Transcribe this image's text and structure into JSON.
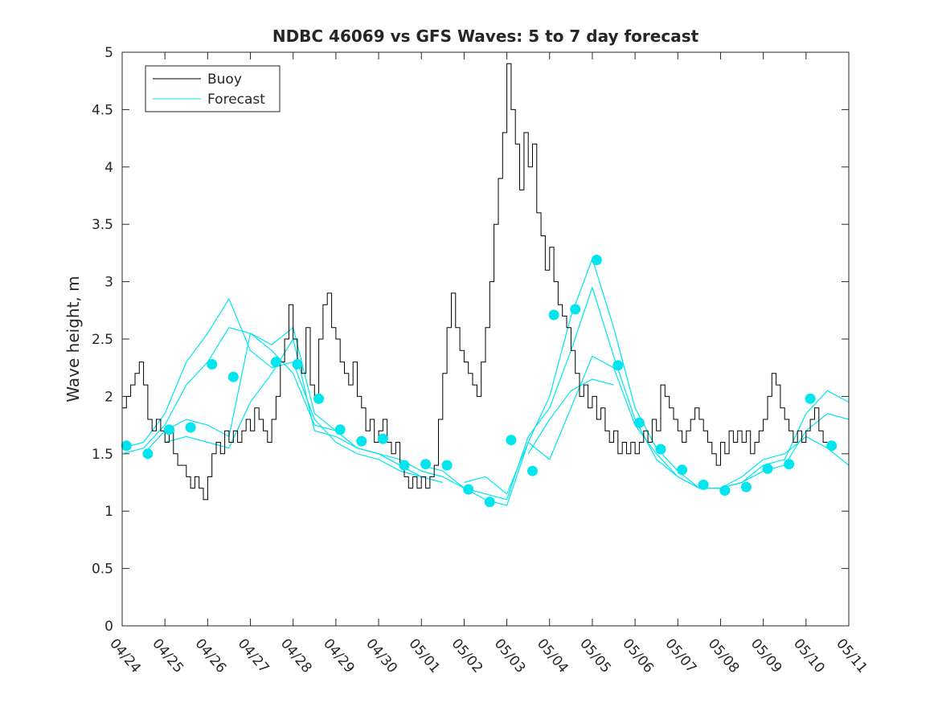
{
  "chart_data": {
    "type": "line",
    "title": "NDBC 46069 vs GFS Waves: 5 to 7 day forecast",
    "xlabel": "",
    "ylabel": "Wave height, m",
    "x_unit": "days",
    "xlim": [
      0,
      17
    ],
    "ylim": [
      0,
      5
    ],
    "x_ticks": [
      0,
      1,
      2,
      3,
      4,
      5,
      6,
      7,
      8,
      9,
      10,
      11,
      12,
      13,
      14,
      15,
      16,
      17
    ],
    "x_tick_labels": [
      "04/24",
      "04/25",
      "04/26",
      "04/27",
      "04/28",
      "04/29",
      "04/30",
      "05/01",
      "05/02",
      "05/03",
      "05/04",
      "05/05",
      "05/06",
      "05/07",
      "05/08",
      "05/09",
      "05/10",
      "05/11"
    ],
    "y_ticks": [
      0,
      0.5,
      1,
      1.5,
      2,
      2.5,
      3,
      3.5,
      4,
      4.5,
      5
    ],
    "y_tick_labels": [
      "0",
      "0.5",
      "1",
      "1.5",
      "2",
      "2.5",
      "3",
      "3.5",
      "4",
      "4.5",
      "5"
    ],
    "grid": false,
    "legend_position": "top-left",
    "legend": [
      {
        "label": "Buoy",
        "color": "#000000"
      },
      {
        "label": "Forecast",
        "color": "#00e5ee"
      }
    ],
    "buoy": {
      "name": "Buoy",
      "color": "#000000",
      "x": [
        0.0,
        0.1,
        0.2,
        0.3,
        0.4,
        0.5,
        0.6,
        0.7,
        0.8,
        0.9,
        1.0,
        1.1,
        1.2,
        1.3,
        1.4,
        1.5,
        1.6,
        1.7,
        1.8,
        1.9,
        2.0,
        2.1,
        2.2,
        2.3,
        2.4,
        2.5,
        2.6,
        2.7,
        2.8,
        2.9,
        3.0,
        3.1,
        3.2,
        3.3,
        3.4,
        3.5,
        3.6,
        3.7,
        3.8,
        3.9,
        4.0,
        4.1,
        4.2,
        4.3,
        4.4,
        4.5,
        4.6,
        4.7,
        4.8,
        4.9,
        5.0,
        5.1,
        5.2,
        5.3,
        5.4,
        5.5,
        5.6,
        5.7,
        5.8,
        5.9,
        6.0,
        6.1,
        6.2,
        6.3,
        6.4,
        6.5,
        6.6,
        6.7,
        6.8,
        6.9,
        7.0,
        7.1,
        7.2,
        7.3,
        7.4,
        7.5,
        7.6,
        7.7,
        7.8,
        7.9,
        8.0,
        8.1,
        8.2,
        8.3,
        8.4,
        8.5,
        8.6,
        8.7,
        8.8,
        8.9,
        9.0,
        9.1,
        9.2,
        9.3,
        9.4,
        9.5,
        9.6,
        9.7,
        9.8,
        9.9,
        10.0,
        10.1,
        10.2,
        10.3,
        10.4,
        10.5,
        10.6,
        10.7,
        10.8,
        10.9,
        11.0,
        11.1,
        11.2,
        11.3,
        11.4,
        11.5,
        11.6,
        11.7,
        11.8,
        11.9,
        12.0,
        12.1,
        12.2,
        12.3,
        12.4,
        12.5,
        12.6,
        12.7,
        12.8,
        12.9,
        13.0,
        13.1,
        13.2,
        13.3,
        13.4,
        13.5,
        13.6,
        13.7,
        13.8,
        13.9,
        14.0,
        14.1,
        14.2,
        14.3,
        14.4,
        14.5,
        14.6,
        14.7,
        14.8,
        14.9,
        15.0,
        15.1,
        15.2,
        15.3,
        15.4,
        15.5,
        15.6,
        15.7,
        15.8,
        15.9,
        16.0,
        16.1,
        16.2,
        16.3,
        16.4,
        16.5
      ],
      "y": [
        1.9,
        2.0,
        2.1,
        2.2,
        2.3,
        2.1,
        1.8,
        1.7,
        1.8,
        1.7,
        1.6,
        1.7,
        1.5,
        1.4,
        1.4,
        1.3,
        1.2,
        1.3,
        1.2,
        1.1,
        1.3,
        1.5,
        1.6,
        1.5,
        1.7,
        1.6,
        1.7,
        1.6,
        1.7,
        1.8,
        1.7,
        1.9,
        1.8,
        1.7,
        1.6,
        1.8,
        2.0,
        2.3,
        2.5,
        2.8,
        2.5,
        2.3,
        2.2,
        2.6,
        2.1,
        2.0,
        2.5,
        2.8,
        2.9,
        2.6,
        2.5,
        2.3,
        2.2,
        2.1,
        2.3,
        2.0,
        1.9,
        1.7,
        1.8,
        1.6,
        1.7,
        1.8,
        1.6,
        1.5,
        1.6,
        1.4,
        1.3,
        1.2,
        1.3,
        1.2,
        1.3,
        1.2,
        1.3,
        1.4,
        1.8,
        2.2,
        2.6,
        2.9,
        2.6,
        2.4,
        2.3,
        2.2,
        2.1,
        2.0,
        2.3,
        2.6,
        3.0,
        3.5,
        3.9,
        4.3,
        4.9,
        4.5,
        4.2,
        3.8,
        4.3,
        4.0,
        4.2,
        3.6,
        3.4,
        3.1,
        3.3,
        3.0,
        2.8,
        2.7,
        2.6,
        2.4,
        2.2,
        2.0,
        2.1,
        1.9,
        2.0,
        1.8,
        1.9,
        1.7,
        1.6,
        1.7,
        1.5,
        1.6,
        1.5,
        1.6,
        1.5,
        1.6,
        1.7,
        1.6,
        1.8,
        1.7,
        2.1,
        2.0,
        1.9,
        1.8,
        1.7,
        1.6,
        1.7,
        1.8,
        1.9,
        1.8,
        1.7,
        1.6,
        1.5,
        1.4,
        1.6,
        1.5,
        1.7,
        1.6,
        1.7,
        1.6,
        1.7,
        1.5,
        1.6,
        1.7,
        1.8,
        2.0,
        2.2,
        2.1,
        1.9,
        1.8,
        1.7,
        1.6,
        1.7,
        1.6,
        1.7,
        1.8,
        1.9,
        1.7,
        1.6,
        1.6
      ]
    },
    "forecast_runs": [
      {
        "color": "#00e5ee",
        "x": [
          0.0,
          0.5,
          1.0,
          1.5,
          2.0,
          2.5,
          3.0,
          3.5,
          4.0,
          4.5,
          5.0,
          5.5,
          6.0,
          6.5,
          7.0
        ],
        "y": [
          1.55,
          1.6,
          1.85,
          2.3,
          2.55,
          2.85,
          2.4,
          2.25,
          2.3,
          1.8,
          1.6,
          1.5,
          1.45,
          1.35,
          1.3
        ]
      },
      {
        "color": "#00e5ee",
        "x": [
          0.0,
          0.5,
          1.0,
          1.5,
          2.0,
          2.5,
          3.0,
          3.5,
          4.0,
          4.5,
          5.0,
          5.5,
          6.0,
          6.5,
          7.0
        ],
        "y": [
          1.5,
          1.55,
          1.75,
          2.1,
          2.3,
          2.6,
          2.55,
          2.4,
          2.2,
          1.75,
          1.7,
          1.55,
          1.5,
          1.4,
          1.3
        ]
      },
      {
        "color": "#00e5ee",
        "x": [
          0.5,
          1.0,
          1.5,
          2.0,
          2.5,
          3.0,
          3.5,
          4.0,
          4.5,
          5.0,
          5.5,
          6.0,
          6.5,
          7.0,
          7.5
        ],
        "y": [
          1.5,
          1.7,
          1.8,
          1.75,
          1.65,
          2.55,
          2.45,
          2.6,
          1.85,
          1.7,
          1.55,
          1.5,
          1.45,
          1.35,
          1.3
        ]
      },
      {
        "color": "#00e5ee",
        "x": [
          1.0,
          1.5,
          2.0,
          2.5,
          3.0,
          3.5,
          4.0,
          4.5,
          5.0,
          5.5,
          6.0,
          6.5,
          7.0,
          7.5
        ],
        "y": [
          1.6,
          1.65,
          1.6,
          1.55,
          1.95,
          2.2,
          2.5,
          1.7,
          1.65,
          1.55,
          1.5,
          1.4,
          1.3,
          1.25
        ]
      },
      {
        "color": "#00e5ee",
        "x": [
          7.0,
          7.5,
          8.0,
          8.5,
          9.0,
          9.5,
          10.0,
          10.5,
          11.0,
          11.5,
          12.0,
          12.5,
          13.0,
          13.5,
          14.0,
          14.5,
          15.0,
          15.5,
          16.0,
          16.5,
          17.0
        ],
        "y": [
          1.4,
          1.35,
          1.2,
          1.1,
          1.05,
          1.6,
          2.0,
          2.7,
          3.2,
          2.6,
          1.9,
          1.55,
          1.35,
          1.2,
          1.2,
          1.25,
          1.4,
          1.45,
          1.85,
          2.05,
          1.95
        ]
      },
      {
        "color": "#00e5ee",
        "x": [
          7.0,
          7.5,
          8.0,
          8.5,
          9.0,
          9.5,
          10.0,
          10.5,
          11.0,
          11.5,
          12.0,
          12.5,
          13.0,
          13.5,
          14.0,
          14.5,
          15.0,
          15.5,
          16.0,
          16.5,
          17.0
        ],
        "y": [
          1.35,
          1.3,
          1.2,
          1.15,
          1.1,
          1.65,
          1.9,
          2.4,
          2.95,
          2.35,
          1.8,
          1.45,
          1.3,
          1.2,
          1.2,
          1.25,
          1.35,
          1.4,
          1.7,
          1.85,
          1.8
        ]
      },
      {
        "color": "#00e5ee",
        "x": [
          8.0,
          8.5,
          9.0,
          9.5,
          10.0,
          10.5,
          11.0,
          11.5,
          12.0,
          12.5,
          13.0,
          13.5,
          14.0,
          14.5,
          15.0,
          15.5,
          16.0,
          16.5,
          17.0
        ],
        "y": [
          1.25,
          1.3,
          1.15,
          1.6,
          1.45,
          1.9,
          2.35,
          2.25,
          1.75,
          1.5,
          1.3,
          1.2,
          1.2,
          1.3,
          1.45,
          1.5,
          1.65,
          1.55,
          1.4
        ]
      },
      {
        "color": "#00e5ee",
        "x": [
          9.5,
          10.0,
          10.5,
          11.0,
          11.5
        ],
        "y": [
          1.5,
          1.8,
          2.05,
          2.15,
          2.1
        ]
      }
    ],
    "forecast_markers": {
      "color": "#00e5ee",
      "x": [
        0.1,
        0.6,
        1.1,
        1.6,
        2.1,
        2.6,
        3.6,
        4.1,
        4.6,
        5.1,
        5.6,
        6.1,
        6.6,
        7.1,
        7.6,
        8.1,
        8.6,
        9.1,
        9.6,
        10.1,
        10.6,
        11.1,
        11.6,
        12.1,
        12.6,
        13.1,
        13.6,
        14.1,
        14.6,
        15.1,
        15.6,
        16.1,
        16.6
      ],
      "y": [
        1.57,
        1.5,
        1.71,
        1.73,
        2.28,
        2.17,
        2.3,
        2.28,
        1.98,
        1.71,
        1.61,
        1.63,
        1.4,
        1.41,
        1.4,
        1.19,
        1.08,
        1.62,
        1.35,
        2.71,
        2.76,
        3.19,
        2.27,
        1.77,
        1.54,
        1.36,
        1.23,
        1.18,
        1.21,
        1.37,
        1.41,
        1.98,
        1.57
      ]
    }
  }
}
